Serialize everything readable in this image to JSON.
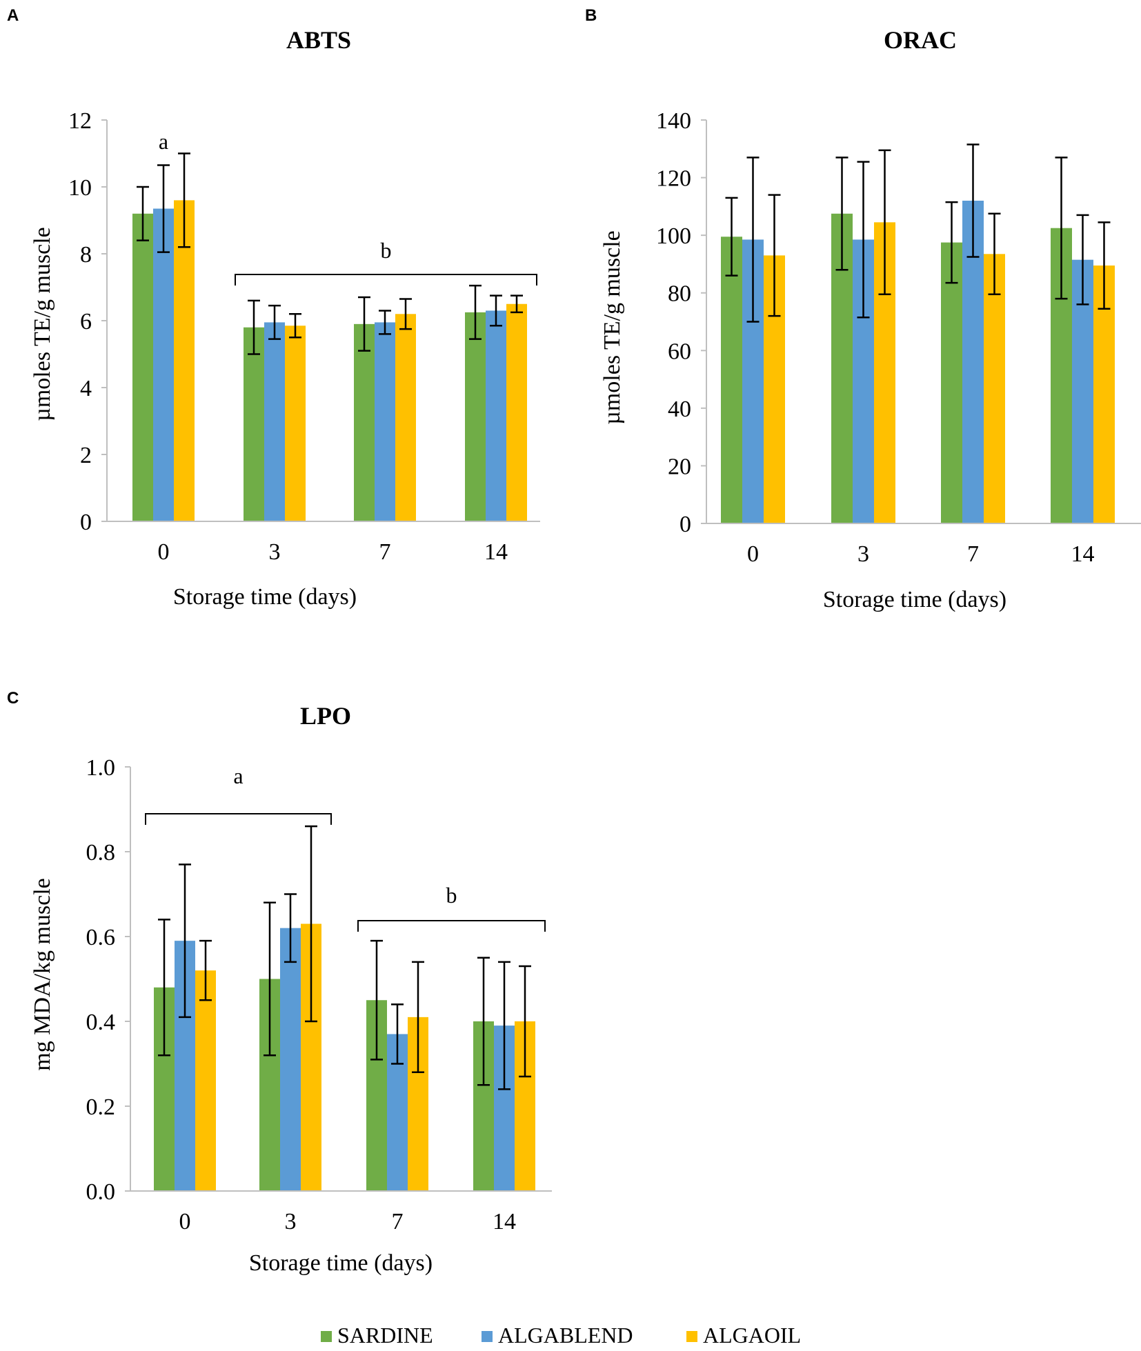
{
  "colors": {
    "SARDINE": "#70AD47",
    "ALGABLEND": "#5B9BD5",
    "ALGAOIL": "#FFC000"
  },
  "legend": [
    "SARDINE",
    "ALGABLEND",
    "ALGAOIL"
  ],
  "chart_data": [
    {
      "panel": "A",
      "type": "bar",
      "title": "ABTS",
      "xlabel": "Storage time (days)",
      "ylabel": "µmoles TE/g muscle",
      "categories": [
        "0",
        "3",
        "7",
        "14"
      ],
      "ylim": [
        0,
        12
      ],
      "yticks": [
        "0",
        "2",
        "4",
        "6",
        "8",
        "10",
        "12"
      ],
      "series": [
        {
          "name": "SARDINE",
          "values": [
            9.2,
            5.8,
            5.9,
            6.25
          ],
          "errors": [
            0.8,
            0.8,
            0.8,
            0.8
          ]
        },
        {
          "name": "ALGABLEND",
          "values": [
            9.35,
            5.95,
            5.95,
            6.3
          ],
          "errors": [
            1.3,
            0.5,
            0.35,
            0.45
          ]
        },
        {
          "name": "ALGAOIL",
          "values": [
            9.6,
            5.85,
            6.2,
            6.5
          ],
          "errors": [
            1.4,
            0.35,
            0.45,
            0.25
          ]
        }
      ],
      "annotations": [
        {
          "label": "a",
          "from": "0",
          "to": "0",
          "bracket": false
        },
        {
          "label": "b",
          "from": "3",
          "to": "14",
          "bracket": true
        }
      ]
    },
    {
      "panel": "B",
      "type": "bar",
      "title": "ORAC",
      "xlabel": "Storage time (days)",
      "ylabel": "µmoles TE/g muscle",
      "categories": [
        "0",
        "3",
        "7",
        "14"
      ],
      "ylim": [
        0,
        140
      ],
      "yticks": [
        "0",
        "20",
        "40",
        "60",
        "80",
        "100",
        "120",
        "140"
      ],
      "series": [
        {
          "name": "SARDINE",
          "values": [
            99.5,
            107.5,
            97.5,
            102.5
          ],
          "errors": [
            13.5,
            19.5,
            14,
            24.5
          ]
        },
        {
          "name": "ALGABLEND",
          "values": [
            98.5,
            98.5,
            112,
            91.5
          ],
          "errors": [
            28.5,
            27,
            19.5,
            15.5
          ]
        },
        {
          "name": "ALGAOIL",
          "values": [
            93,
            104.5,
            93.5,
            89.5
          ],
          "errors": [
            21,
            25,
            14,
            15
          ]
        }
      ],
      "annotations": []
    },
    {
      "panel": "C",
      "type": "bar",
      "title": "LPO",
      "xlabel": "Storage time (days)",
      "ylabel": "mg MDA/kg muscle",
      "categories": [
        "0",
        "3",
        "7",
        "14"
      ],
      "ylim": [
        0,
        1.0
      ],
      "yticks": [
        "0.0",
        "0.2",
        "0.4",
        "0.6",
        "0.8",
        "1.0"
      ],
      "series": [
        {
          "name": "SARDINE",
          "values": [
            0.48,
            0.5,
            0.45,
            0.4
          ],
          "errors": [
            0.16,
            0.18,
            0.14,
            0.15
          ]
        },
        {
          "name": "ALGABLEND",
          "values": [
            0.59,
            0.62,
            0.37,
            0.39
          ],
          "errors": [
            0.18,
            0.08,
            0.07,
            0.15
          ]
        },
        {
          "name": "ALGAOIL",
          "values": [
            0.52,
            0.63,
            0.41,
            0.4
          ],
          "errors": [
            0.07,
            0.23,
            0.13,
            0.13
          ]
        }
      ],
      "annotations": [
        {
          "label": "a",
          "from": "0",
          "to": "3",
          "bracket": true
        },
        {
          "label": "b",
          "from": "7",
          "to": "14",
          "bracket": true
        }
      ]
    }
  ]
}
